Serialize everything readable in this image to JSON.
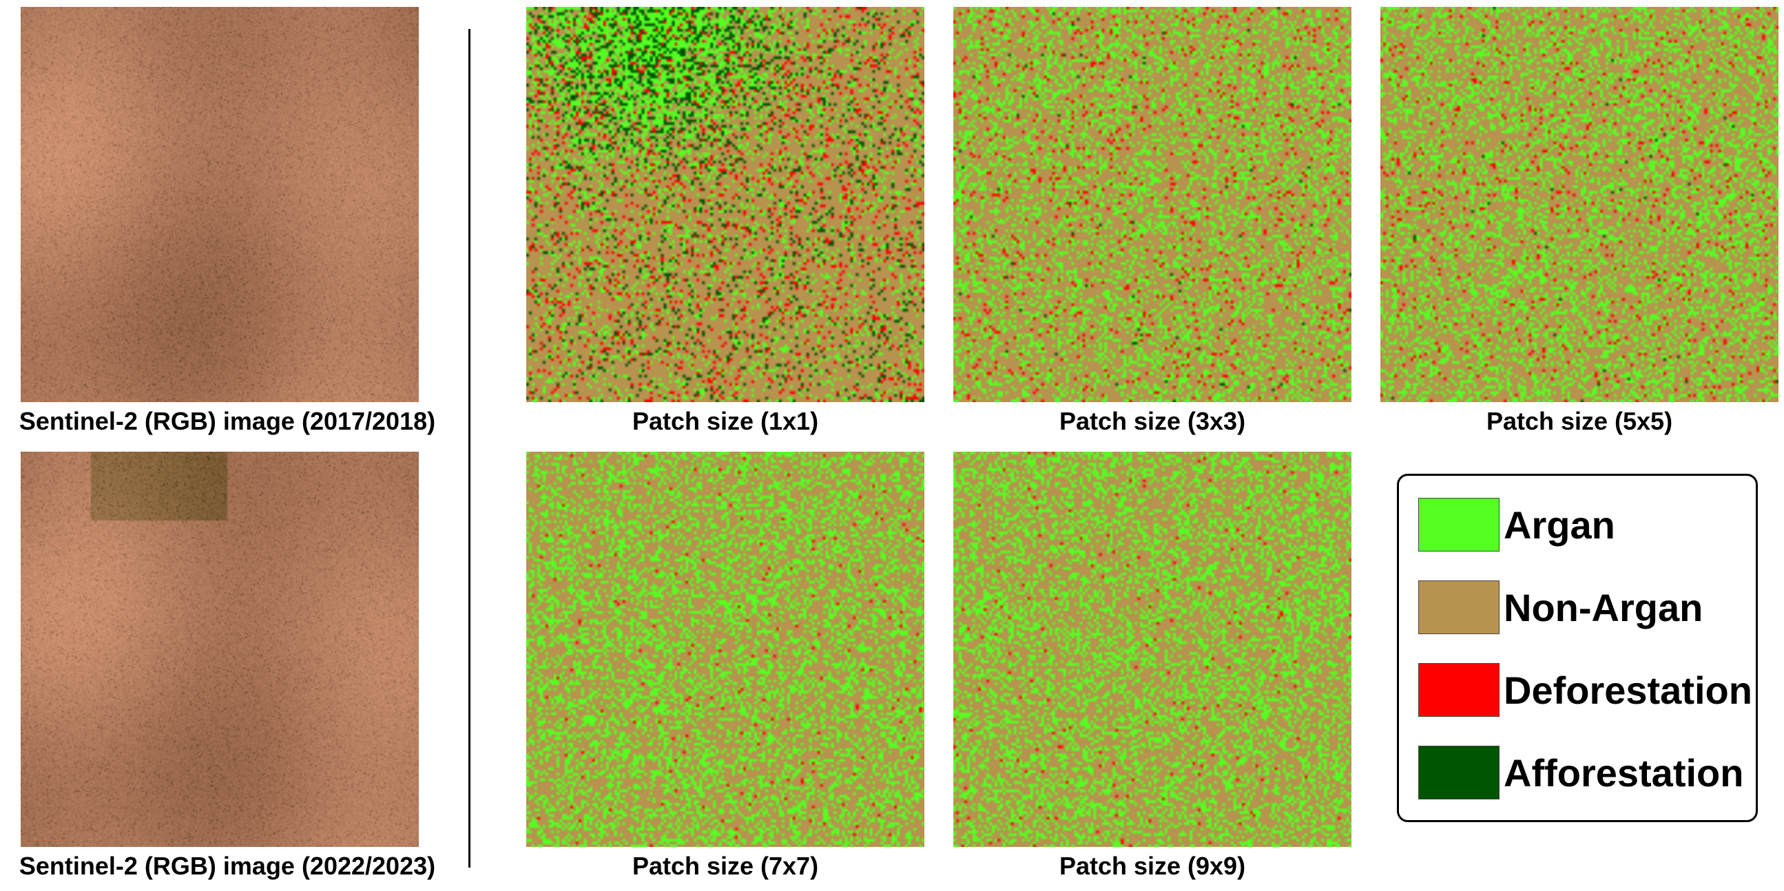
{
  "captions": {
    "rgb_2017": "Sentinel-2 (RGB) image (2017/2018)",
    "rgb_2022": "Sentinel-2 (RGB) image (2022/2023)",
    "patch_1": "Patch size (1x1)",
    "patch_3": "Patch size (3x3)",
    "patch_5": "Patch size (5x5)",
    "patch_7": "Patch size (7x7)",
    "patch_9": "Patch size (9x9)"
  },
  "legend": {
    "items": [
      {
        "label": "Argan",
        "color": "#55ff22"
      },
      {
        "label": "Non-Argan",
        "color": "#b8924f"
      },
      {
        "label": "Deforestation",
        "color": "#ff0000"
      },
      {
        "label": "Afforestation",
        "color": "#005500"
      }
    ]
  },
  "colors": {
    "argan": "#55ff22",
    "non_argan": "#b8924f",
    "deforestation": "#ff0000",
    "afforestation": "#005500",
    "rgb_base": "#b07a5c"
  }
}
